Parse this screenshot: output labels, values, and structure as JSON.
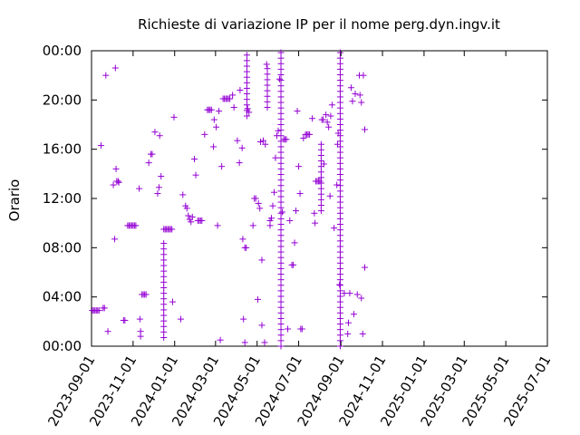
{
  "chart_data": {
    "type": "scatter",
    "title": "Richieste di variazione IP per il nome perg.dyn.ingv.it",
    "ylabel": "Orario",
    "xlabel": "",
    "grid": false,
    "legend": "none",
    "marker": "plus",
    "colors": {
      "points": "#9400d3",
      "axes": "#000000"
    },
    "xlim": [
      "2023-09-01",
      "2025-07-01"
    ],
    "ylim": [
      "00:00",
      "24:00"
    ],
    "x_ticks": [
      "2023-09-01",
      "2023-11-01",
      "2024-01-01",
      "2024-03-01",
      "2024-05-01",
      "2024-07-01",
      "2024-09-01",
      "2024-11-01",
      "2025-01-01",
      "2025-03-01",
      "2025-05-01",
      "2025-07-01"
    ],
    "y_ticks": [
      "00:00",
      "04:00",
      "08:00",
      "12:00",
      "16:00",
      "20:00",
      "00:00"
    ],
    "points": [
      [
        "2023-09-02",
        2.9
      ],
      [
        "2023-09-04",
        2.9
      ],
      [
        "2023-09-06",
        2.9
      ],
      [
        "2023-09-08",
        2.9
      ],
      [
        "2023-09-10",
        2.9
      ],
      [
        "2023-09-12",
        2.9
      ],
      [
        "2023-09-18",
        3.1
      ],
      [
        "2023-09-20",
        3.1
      ],
      [
        "2023-09-15",
        16.3
      ],
      [
        "2023-09-25",
        1.2
      ],
      [
        "2023-09-22",
        22.0
      ],
      [
        "2023-10-03",
        13.1
      ],
      [
        "2023-10-05",
        8.7
      ],
      [
        "2023-10-06",
        22.6
      ],
      [
        "2023-10-07",
        14.4
      ],
      [
        "2023-10-08",
        13.4
      ],
      [
        "2023-10-10",
        13.4
      ],
      [
        "2023-10-11",
        13.3
      ],
      [
        "2023-10-18",
        2.1
      ],
      [
        "2023-10-20",
        2.1
      ],
      [
        "2023-10-24",
        9.8
      ],
      [
        "2023-10-26",
        9.8
      ],
      [
        "2023-10-28",
        9.8
      ],
      [
        "2023-10-30",
        9.8
      ],
      [
        "2023-11-01",
        9.8
      ],
      [
        "2023-11-03",
        9.8
      ],
      [
        "2023-11-05",
        9.8
      ],
      [
        "2023-11-10",
        12.8
      ],
      [
        "2023-11-11",
        2.2
      ],
      [
        "2023-11-12",
        1.2
      ],
      [
        "2023-11-12",
        0.8
      ],
      [
        "2023-11-14",
        4.2
      ],
      [
        "2023-11-16",
        4.2
      ],
      [
        "2023-11-18",
        4.2
      ],
      [
        "2023-11-20",
        4.2
      ],
      [
        "2023-11-24",
        14.9
      ],
      [
        "2023-11-27",
        15.6
      ],
      [
        "2023-11-29",
        15.6
      ],
      [
        "2023-12-03",
        17.4
      ],
      [
        "2023-12-07",
        12.4
      ],
      [
        "2023-12-09",
        12.9
      ],
      [
        "2023-12-10",
        17.1
      ],
      [
        "2023-12-12",
        13.8
      ],
      [
        "2023-12-16",
        9.5
      ],
      [
        "2023-12-18",
        9.5
      ],
      [
        "2023-12-20",
        9.5
      ],
      [
        "2023-12-22",
        9.5
      ],
      [
        "2023-12-24",
        9.5
      ],
      [
        "2023-12-26",
        9.5
      ],
      [
        "2023-12-28",
        9.5
      ],
      [
        "2023-12-29",
        3.6
      ],
      [
        "2023-12-31",
        18.6
      ],
      [
        "2024-01-10",
        2.2
      ],
      [
        "2024-01-13",
        12.3
      ],
      [
        "2024-01-17",
        11.4
      ],
      [
        "2024-01-19",
        11.2
      ],
      [
        "2024-01-21",
        10.6
      ],
      [
        "2024-01-23",
        10.3
      ],
      [
        "2024-01-25",
        10.1
      ],
      [
        "2024-01-27",
        10.5
      ],
      [
        "2024-01-30",
        15.2
      ],
      [
        "2024-02-01",
        13.9
      ],
      [
        "2024-02-04",
        10.2
      ],
      [
        "2024-02-06",
        10.2
      ],
      [
        "2024-02-08",
        10.2
      ],
      [
        "2024-02-10",
        10.2
      ],
      [
        "2024-02-14",
        17.2
      ],
      [
        "2024-02-18",
        19.2
      ],
      [
        "2024-02-20",
        19.2
      ],
      [
        "2024-02-22",
        19.2
      ],
      [
        "2024-02-24",
        19.2
      ],
      [
        "2024-02-27",
        16.2
      ],
      [
        "2024-02-28",
        18.4
      ],
      [
        "2024-03-02",
        17.8
      ],
      [
        "2024-03-04",
        9.8
      ],
      [
        "2024-03-06",
        19.1
      ],
      [
        "2024-03-08",
        0.5
      ],
      [
        "2024-03-10",
        14.6
      ],
      [
        "2024-03-12",
        20.1
      ],
      [
        "2024-03-14",
        20.1
      ],
      [
        "2024-03-16",
        20.1
      ],
      [
        "2024-03-18",
        20.1
      ],
      [
        "2024-03-20",
        20.1
      ],
      [
        "2024-03-22",
        20.1
      ],
      [
        "2024-03-26",
        20.4
      ],
      [
        "2024-03-28",
        19.4
      ],
      [
        "2024-04-02",
        16.7
      ],
      [
        "2024-04-05",
        14.9
      ],
      [
        "2024-04-06",
        20.8
      ],
      [
        "2024-04-09",
        16.1
      ],
      [
        "2024-04-10",
        8.7
      ],
      [
        "2024-04-11",
        2.2
      ],
      [
        "2024-04-13",
        0.3
      ],
      [
        "2024-04-13",
        8.0
      ],
      [
        "2024-04-15",
        8.0
      ],
      [
        "2024-04-17",
        19.3
      ],
      [
        "2024-04-19",
        19.0
      ],
      [
        "2024-04-25",
        9.8
      ],
      [
        "2024-04-27",
        12.0
      ],
      [
        "2024-04-29",
        12.0
      ],
      [
        "2024-05-02",
        3.8
      ],
      [
        "2024-05-03",
        11.6
      ],
      [
        "2024-05-05",
        11.2
      ],
      [
        "2024-05-06",
        16.6
      ],
      [
        "2024-05-08",
        7.0
      ],
      [
        "2024-05-08",
        1.7
      ],
      [
        "2024-05-10",
        16.7
      ],
      [
        "2024-05-12",
        0.3
      ],
      [
        "2024-05-13",
        16.4
      ],
      [
        "2024-05-15",
        22.9
      ],
      [
        "2024-05-20",
        10.2
      ],
      [
        "2024-05-20",
        9.8
      ],
      [
        "2024-05-22",
        10.4
      ],
      [
        "2024-05-24",
        11.4
      ],
      [
        "2024-05-26",
        12.5
      ],
      [
        "2024-05-28",
        15.3
      ],
      [
        "2024-05-30",
        17.1
      ],
      [
        "2024-06-01",
        17.5
      ],
      [
        "2024-06-03",
        21.7
      ],
      [
        "2024-06-07",
        10.9
      ],
      [
        "2024-06-09",
        16.8
      ],
      [
        "2024-06-11",
        16.8
      ],
      [
        "2024-06-13",
        16.8
      ],
      [
        "2024-06-15",
        1.4
      ],
      [
        "2024-06-18",
        10.2
      ],
      [
        "2024-06-21",
        6.6
      ],
      [
        "2024-06-23",
        6.6
      ],
      [
        "2024-06-25",
        8.4
      ],
      [
        "2024-06-27",
        11.0
      ],
      [
        "2024-06-29",
        19.1
      ],
      [
        "2024-07-01",
        14.6
      ],
      [
        "2024-07-03",
        12.4
      ],
      [
        "2024-07-04",
        1.4
      ],
      [
        "2024-07-06",
        1.4
      ],
      [
        "2024-07-08",
        16.9
      ],
      [
        "2024-07-11",
        17.2
      ],
      [
        "2024-07-13",
        17.2
      ],
      [
        "2024-07-15",
        17.2
      ],
      [
        "2024-07-17",
        17.2
      ],
      [
        "2024-07-21",
        18.5
      ],
      [
        "2024-07-24",
        10.8
      ],
      [
        "2024-07-25",
        10.0
      ],
      [
        "2024-07-26",
        13.4
      ],
      [
        "2024-07-28",
        13.4
      ],
      [
        "2024-07-30",
        13.4
      ],
      [
        "2024-08-01",
        13.4
      ],
      [
        "2024-08-04",
        18.4
      ],
      [
        "2024-08-06",
        18.4
      ],
      [
        "2024-08-07",
        14.8
      ],
      [
        "2024-08-10",
        18.8
      ],
      [
        "2024-08-12",
        18.2
      ],
      [
        "2024-08-14",
        17.8
      ],
      [
        "2024-08-16",
        12.2
      ],
      [
        "2024-08-17",
        18.7
      ],
      [
        "2024-08-19",
        19.6
      ],
      [
        "2024-08-22",
        9.6
      ],
      [
        "2024-08-26",
        13.1
      ],
      [
        "2024-08-27",
        16.4
      ],
      [
        "2024-08-28",
        17.3
      ],
      [
        "2024-08-30",
        5.0
      ],
      [
        "2024-09-06",
        4.3
      ],
      [
        "2024-09-11",
        1.0
      ],
      [
        "2024-09-12",
        1.9
      ],
      [
        "2024-09-14",
        4.3
      ],
      [
        "2024-09-16",
        21.0
      ],
      [
        "2024-09-18",
        19.9
      ],
      [
        "2024-09-20",
        2.6
      ],
      [
        "2024-09-22",
        20.5
      ],
      [
        "2024-09-25",
        4.2
      ],
      [
        "2024-09-28",
        22.0
      ],
      [
        "2024-09-29",
        20.4
      ],
      [
        "2024-10-01",
        3.9
      ],
      [
        "2024-10-01",
        19.8
      ],
      [
        "2024-10-03",
        1.0
      ],
      [
        "2024-10-04",
        22.0
      ],
      [
        "2024-10-06",
        6.4
      ],
      [
        "2024-10-06",
        17.6
      ]
    ],
    "vertical_runs": [
      {
        "date": "2023-12-16",
        "from": 0.7,
        "to": 8.7
      },
      {
        "date": "2024-04-16",
        "from": 18.7,
        "to": 23.9
      },
      {
        "date": "2024-05-16",
        "from": 19.4,
        "to": 22.9
      },
      {
        "date": "2024-06-05",
        "from": 0.0,
        "to": 23.9
      },
      {
        "date": "2024-08-31",
        "from": 0.0,
        "to": 23.9
      },
      {
        "date": "2024-08-03",
        "from": 11.0,
        "to": 16.4
      }
    ]
  }
}
